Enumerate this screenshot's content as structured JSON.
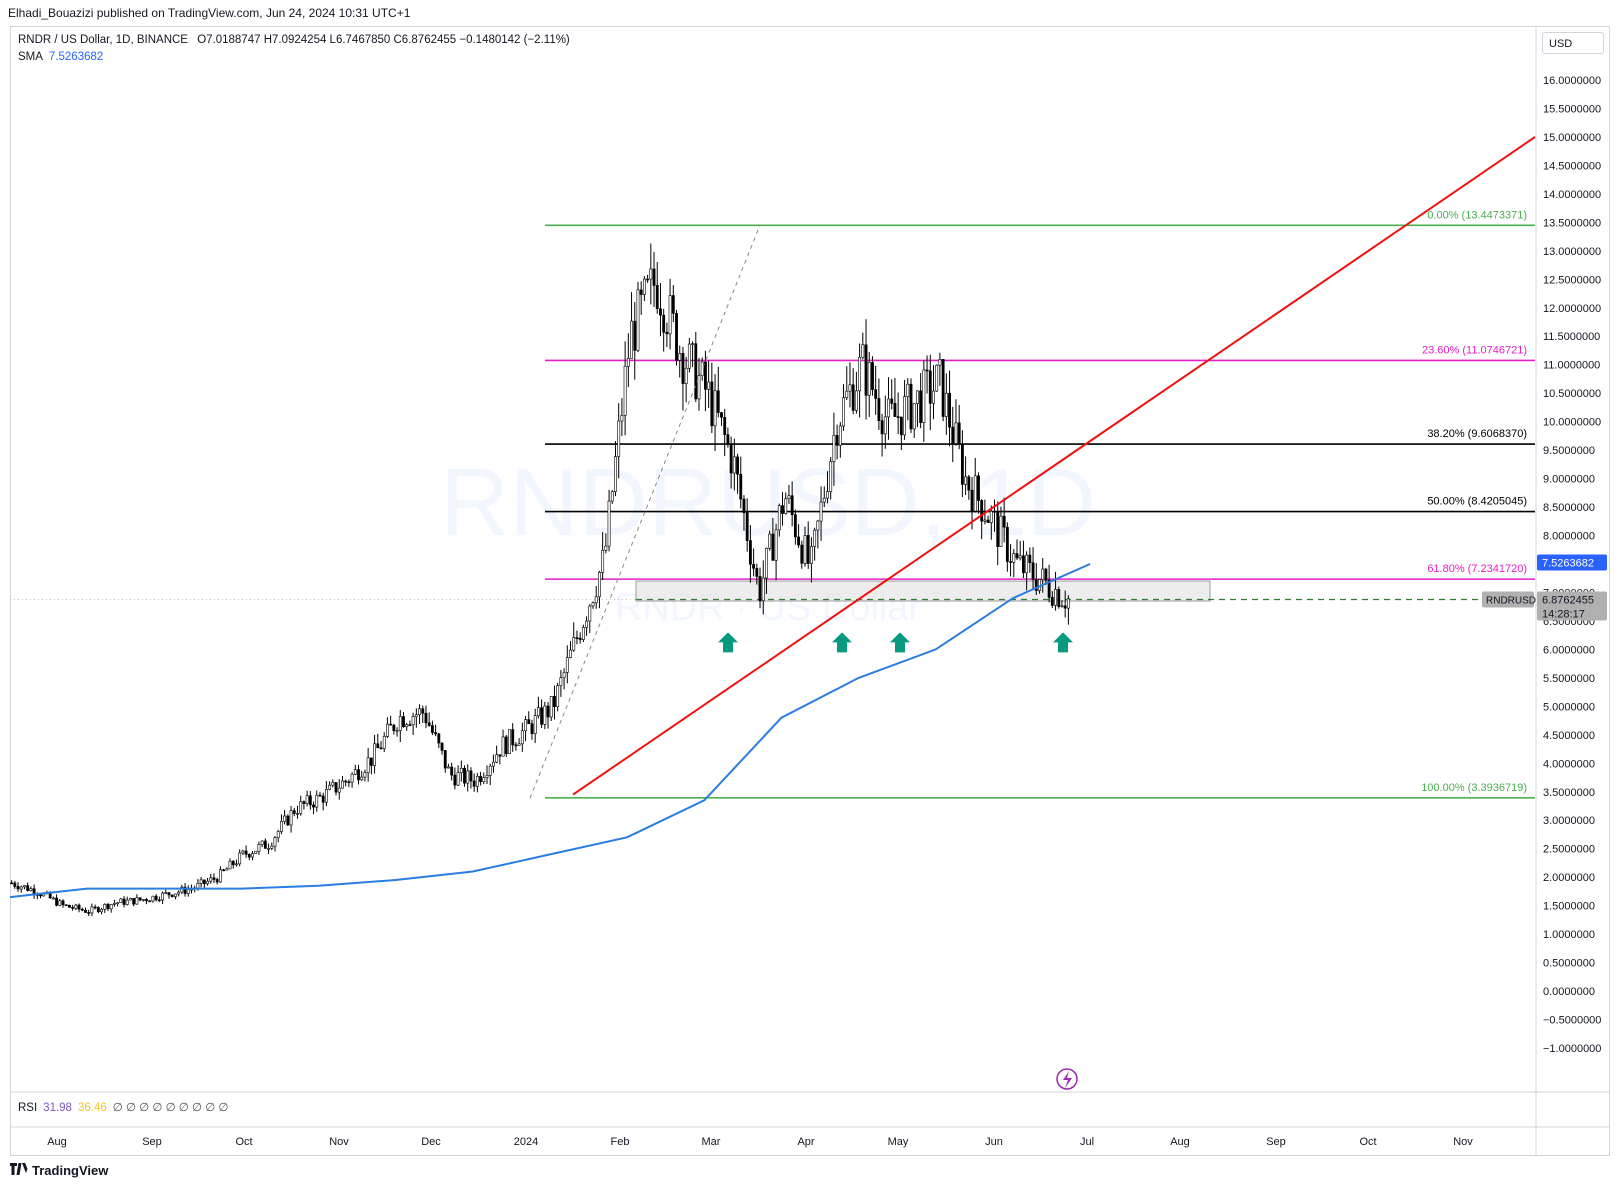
{
  "header": {
    "published_text": "Elhadi_Bouazizi published on TradingView.com, Jun 24, 2024 10:31 UTC+1"
  },
  "legend": {
    "symbol": "RNDR / US Dollar, 1D, BINANCE",
    "ohlc": "O7.0188747  H7.0924254  L6.7467850  C6.8762455  −0.1480142 (−2.11%)",
    "sma_label": "SMA",
    "sma_value": "7.5263682"
  },
  "rsi": {
    "label": "RSI",
    "value1": "31.98",
    "value2": "36.46",
    "empty": "∅ ∅ ∅ ∅ ∅ ∅ ∅ ∅ ∅"
  },
  "currency_button": "USD",
  "watermark": {
    "line1": "RNDRUSD, 1D",
    "line2": "RNDR · US Dollar"
  },
  "footer": {
    "brand": "TradingView"
  },
  "colors": {
    "green": "#4caf50",
    "magenta": "#e91ec8",
    "black": "#000000",
    "red": "#f01010",
    "blue": "#2a7de1",
    "teal": "#089981"
  },
  "chart_data": {
    "type": "candlestick",
    "y_axis": {
      "min": -1.0,
      "max": 16.0,
      "step": 0.5,
      "tick_labels": [
        "16.0000000",
        "15.5000000",
        "15.0000000",
        "14.5000000",
        "14.0000000",
        "13.5000000",
        "13.0000000",
        "12.5000000",
        "12.0000000",
        "11.5000000",
        "11.0000000",
        "10.5000000",
        "10.0000000",
        "9.5000000",
        "9.0000000",
        "8.5000000",
        "8.0000000",
        "7.5000000",
        "7.0000000",
        "6.5000000",
        "6.0000000",
        "5.5000000",
        "5.0000000",
        "4.5000000",
        "4.0000000",
        "3.5000000",
        "3.0000000",
        "2.5000000",
        "2.0000000",
        "1.5000000",
        "1.0000000",
        "0.5000000",
        "0.0000000",
        "−0.5000000",
        "−1.0000000"
      ]
    },
    "x_axis": {
      "tick_labels": [
        "Aug",
        "Sep",
        "Oct",
        "Nov",
        "Dec",
        "2024",
        "Feb",
        "Mar",
        "Apr",
        "May",
        "Jun",
        "Jul",
        "Aug",
        "Sep",
        "Oct",
        "Nov"
      ]
    },
    "fib_levels": [
      {
        "label": "0.00% (13.4473371)",
        "value": 13.4473371,
        "color": "#4caf50"
      },
      {
        "label": "23.60% (11.0746721)",
        "value": 11.0746721,
        "color": "#e91ec8"
      },
      {
        "label": "38.20% (9.6068370)",
        "value": 9.606837,
        "color": "#000000"
      },
      {
        "label": "50.00% (8.4205045)",
        "value": 8.4205045,
        "color": "#000000"
      },
      {
        "label": "61.80% (7.2341720)",
        "value": 7.234172,
        "color": "#e91ec8"
      },
      {
        "label": "100.00% (3.3936719)",
        "value": 3.3936719,
        "color": "#4caf50"
      }
    ],
    "price_tags": [
      {
        "label": "7.5263682",
        "value": 7.5263682,
        "color": "#2962ff"
      },
      {
        "label": "6.8764984",
        "value": 6.8764984,
        "color": "#2e7d32"
      },
      {
        "label": "6.8762455",
        "value": 6.8762455,
        "color": "#b0b0b0"
      },
      {
        "label": "14:28:17",
        "value": 6.63,
        "color": "#b0b0b0"
      }
    ],
    "symbol_tag": "RNDRUSD",
    "last_price": 6.8762455,
    "support_zone": {
      "from": 6.85,
      "to": 7.2
    },
    "trendline": {
      "start": {
        "date_approx": "Jan 2024",
        "value": 3.45
      },
      "end": {
        "value": 15.0
      }
    },
    "sma_trend_points": [
      1.65,
      1.8,
      1.8,
      1.8,
      1.85,
      1.95,
      2.1,
      2.4,
      2.7,
      3.35,
      4.8,
      5.5,
      6.0,
      6.9,
      7.5
    ],
    "closes": [
      1.9,
      1.75,
      1.5,
      1.4,
      1.55,
      1.6,
      1.7,
      1.8,
      2.0,
      2.4,
      2.6,
      3.2,
      3.4,
      3.7,
      4.1,
      4.8,
      4.9,
      3.8,
      3.7,
      4.3,
      4.6,
      5.0,
      6.3,
      7.6,
      11.5,
      12.5,
      11.2,
      10.5,
      9.3,
      7.0,
      8.7,
      7.4,
      10.0,
      11.0,
      10.0,
      10.3,
      10.7,
      9.0,
      8.3,
      7.5,
      7.2,
      6.88
    ],
    "green_arrows_under_lows": [
      "Mar",
      "Apr",
      "May",
      "Jun"
    ]
  }
}
